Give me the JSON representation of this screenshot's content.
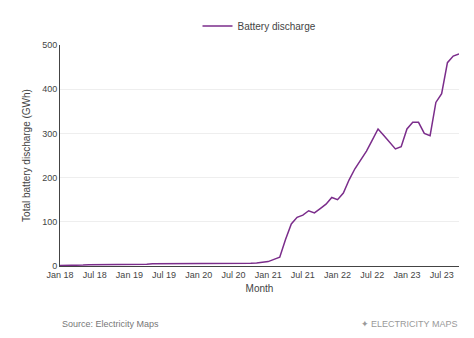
{
  "chart_data": {
    "type": "line",
    "xlabel": "Month",
    "ylabel": "Total battery discharge (GWh)",
    "categories": [
      "Jan 18",
      null,
      null,
      null,
      null,
      null,
      "Jul 18",
      null,
      null,
      null,
      null,
      null,
      "Jan 19",
      null,
      null,
      null,
      null,
      null,
      "Jul 19",
      null,
      null,
      null,
      null,
      null,
      "Jan 20",
      null,
      null,
      null,
      null,
      null,
      "Jul 20",
      null,
      null,
      null,
      null,
      null,
      "Jan 21",
      null,
      null,
      null,
      null,
      null,
      "Jul 21",
      null,
      null,
      null,
      null,
      null,
      "Jan 22",
      null,
      null,
      null,
      null,
      null,
      "Jul 22",
      null,
      null,
      null,
      null,
      null,
      "Jan 23",
      null,
      null,
      null,
      null,
      null,
      "Jul 23",
      null,
      null,
      null
    ],
    "series": [
      {
        "name": "Battery discharge",
        "color": "#7b2d8b",
        "values": [
          1,
          1,
          2,
          2,
          2,
          3,
          3,
          3,
          4,
          3,
          3,
          3,
          3,
          4,
          4,
          4,
          5,
          5,
          5,
          5,
          5,
          5,
          6,
          6,
          6,
          6,
          6,
          5,
          5,
          5,
          5,
          5,
          5,
          6,
          7,
          8,
          10,
          15,
          20,
          60,
          95,
          110,
          115,
          125,
          120,
          130,
          140,
          155,
          150,
          165,
          195,
          220,
          240,
          260,
          285,
          310,
          295,
          280,
          265,
          270,
          310,
          325,
          325,
          300,
          295,
          370,
          390,
          460,
          475,
          480
        ]
      }
    ],
    "ylim": [
      0,
      500
    ],
    "yticks": [
      0,
      100,
      200,
      300,
      400,
      500
    ],
    "grid": true,
    "legend": "top",
    "annotations": [
      "Source: Electricity Maps",
      "✦",
      "ELECTRICITY MAPS"
    ]
  }
}
